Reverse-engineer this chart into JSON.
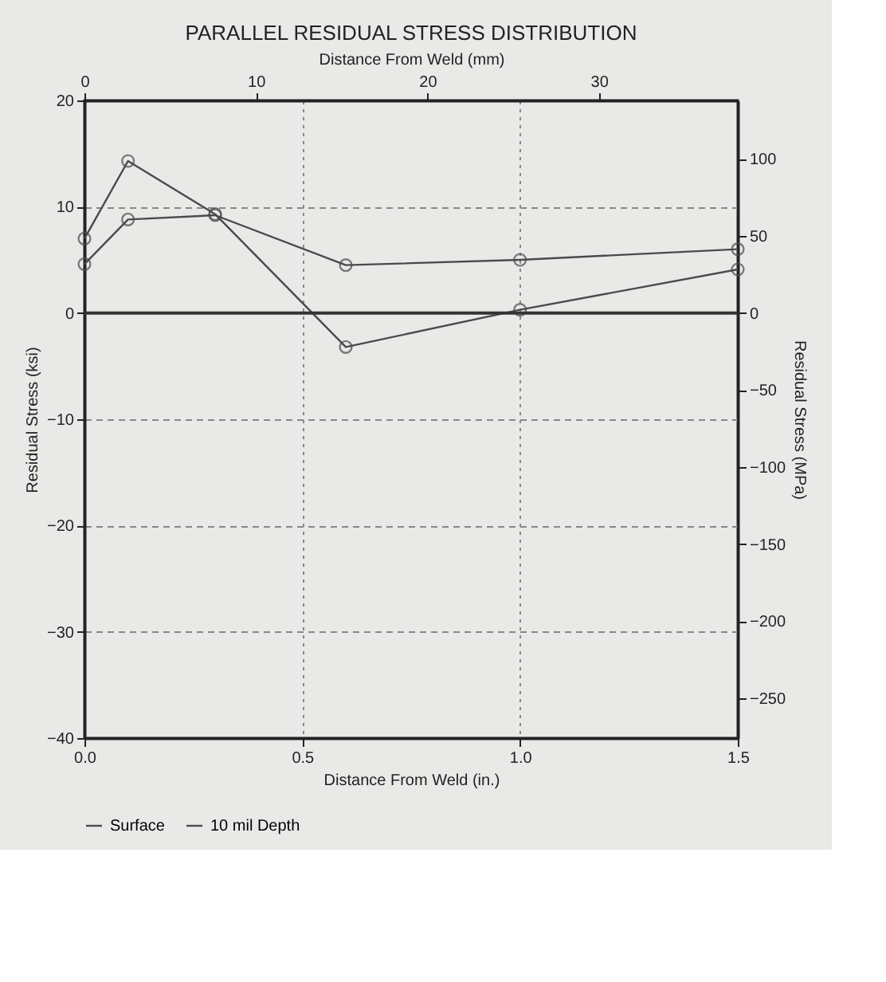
{
  "chart_data": {
    "type": "line",
    "title": "PARALLEL RESIDUAL STRESS DISTRIBUTION",
    "xlabel": "Distance From Weld (in.)",
    "x2label": "Distance From Weld (mm)",
    "ylabel": "Residual Stress (ksi)",
    "y2label": "Residual Stress (MPa)",
    "x": [
      0.0,
      0.1,
      0.3,
      0.6,
      1.0,
      1.5
    ],
    "series": [
      {
        "name": "Surface",
        "color": "#4a4a4a",
        "values": [
          7.0,
          14.3,
          9.3,
          -3.2,
          0.3,
          4.1
        ]
      },
      {
        "name": "10 mil Depth",
        "color": "#4a4a4a",
        "values": [
          4.6,
          8.8,
          9.2,
          4.5,
          5.0,
          6.0
        ]
      }
    ],
    "xlim": [
      0.0,
      1.5
    ],
    "xticks": [
      {
        "value": 0,
        "label": "0.0"
      },
      0.5,
      {
        "value": 1,
        "label": "1.0"
      },
      1.5
    ],
    "x2lim": [
      0,
      38.1
    ],
    "x2ticks": [
      0,
      10,
      20,
      30
    ],
    "ylim": [
      -40,
      20
    ],
    "yticks": [
      -40,
      -30,
      -20,
      -10,
      0,
      10,
      20
    ],
    "y2lim": [
      -275.8,
      137.9
    ],
    "y2ticks": [
      -250,
      -200,
      -150,
      -100,
      -50,
      0,
      50,
      100
    ],
    "ref_lines": [
      {
        "axis": "y",
        "value": 0,
        "color": "#333333"
      }
    ],
    "grid": true,
    "legend": "bottom",
    "marker": "circle",
    "line_style": "solid"
  }
}
